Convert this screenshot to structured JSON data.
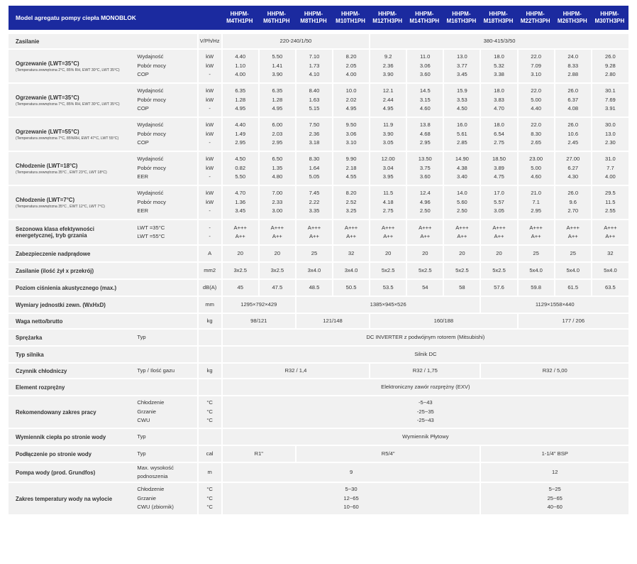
{
  "header": {
    "title": "Model agregatu pompy ciepła MONOBLOK",
    "models": [
      [
        "HHPM-",
        "M4TH1PH"
      ],
      [
        "HHPM-",
        "M6TH1PH"
      ],
      [
        "HHPM-",
        "M8TH1PH"
      ],
      [
        "HHPM-",
        "M10TH1PH"
      ],
      [
        "HHPM-",
        "M12TH3PH"
      ],
      [
        "HHPM-",
        "M14TH3PH"
      ],
      [
        "HHPM-",
        "M16TH3PH"
      ],
      [
        "HHPM-",
        "M18TH3PH"
      ],
      [
        "HHPM-",
        "M22TH3PH"
      ],
      [
        "HHPM-",
        "M26TH3PH"
      ],
      [
        "HHPM-",
        "M30TH3PH"
      ]
    ]
  },
  "rows": [
    {
      "type": "span",
      "label": "Zasilanie",
      "param": "",
      "unit": "V/Ph/Hz",
      "h": 22,
      "groups": [
        {
          "span": 4,
          "lines": [
            "220-240/1/50"
          ]
        },
        {
          "span": 7,
          "lines": [
            "380-415/3/50"
          ]
        }
      ]
    },
    {
      "type": "multi",
      "label": "Ogrzewanie (LWT=35°C)",
      "sub": "(Temperatura zewnętrzna 2°C, 85% RH, EWT 30°C, LWT 35°C)",
      "h": 48,
      "params": [
        "Wydajność",
        "Pobór mocy",
        "COP"
      ],
      "units": [
        "kW",
        "kW",
        "-"
      ],
      "values": [
        [
          "4.40",
          "1.10",
          "4.00"
        ],
        [
          "5.50",
          "1.41",
          "3.90"
        ],
        [
          "7.10",
          "1.73",
          "4.10"
        ],
        [
          "8.20",
          "2.05",
          "4.00"
        ],
        [
          "9.2",
          "2.36",
          "3.90"
        ],
        [
          "11.0",
          "3.06",
          "3.60"
        ],
        [
          "13.0",
          "3.77",
          "3.45"
        ],
        [
          "18.0",
          "5.32",
          "3.38"
        ],
        [
          "22.0",
          "7.09",
          "3.10"
        ],
        [
          "24.0",
          "8.33",
          "2.88"
        ],
        [
          "26.0",
          "9.28",
          "2.80"
        ]
      ]
    },
    {
      "type": "multi",
      "label": "Ogrzewanie (LWT=35°C)",
      "sub": "(Temperatura zewnętrzna 7°C, 85% RH, EWT 30°C, LWT 35°C)",
      "h": 48,
      "params": [
        "Wydajność",
        "Pobór mocy",
        "COP"
      ],
      "units": [
        "kW",
        "kW",
        "-"
      ],
      "values": [
        [
          "6.35",
          "1.28",
          "4.95"
        ],
        [
          "6.35",
          "1.28",
          "4.95"
        ],
        [
          "8.40",
          "1.63",
          "5.15"
        ],
        [
          "10.0",
          "2.02",
          "4.95"
        ],
        [
          "12.1",
          "2.44",
          "4.95"
        ],
        [
          "14.5",
          "3.15",
          "4.60"
        ],
        [
          "15.9",
          "3.53",
          "4.50"
        ],
        [
          "18.0",
          "3.83",
          "4.70"
        ],
        [
          "22.0",
          "5.00",
          "4.40"
        ],
        [
          "26.0",
          "6.37",
          "4.08"
        ],
        [
          "30.1",
          "7.69",
          "3.91"
        ]
      ]
    },
    {
      "type": "multi",
      "label": "Ogrzewanie (LWT=55°C)",
      "sub": "(Temperatura zewnętrzna 7°C, 85%RH, EWT 47°C, LWT 55°C)",
      "h": 48,
      "params": [
        "Wydajność",
        "Pobór mocy",
        "COP"
      ],
      "units": [
        "kW",
        "kW",
        "-"
      ],
      "values": [
        [
          "4.40",
          "1.49",
          "2.95"
        ],
        [
          "6.00",
          "2.03",
          "2.95"
        ],
        [
          "7.50",
          "2.36",
          "3.18"
        ],
        [
          "9.50",
          "3.06",
          "3.10"
        ],
        [
          "11.9",
          "3.90",
          "3.05"
        ],
        [
          "13.8",
          "4.68",
          "2.95"
        ],
        [
          "16.0",
          "5.61",
          "2.85"
        ],
        [
          "18.0",
          "6.54",
          "2.75"
        ],
        [
          "22.0",
          "8.30",
          "2.65"
        ],
        [
          "26.0",
          "10.6",
          "2.45"
        ],
        [
          "30.0",
          "13.0",
          "2.30"
        ]
      ]
    },
    {
      "type": "multi",
      "label": "Chłodzenie (LWT=18°C)",
      "sub": "(Temperatura zewnętrzna 35°C , EWT 23°C, LWT 18°C)",
      "h": 48,
      "params": [
        "Wydajność",
        "Pobór mocy",
        "EER"
      ],
      "units": [
        "kW",
        "kW",
        "-"
      ],
      "values": [
        [
          "4.50",
          "0.82",
          "5.50"
        ],
        [
          "6.50",
          "1.35",
          "4.80"
        ],
        [
          "8.30",
          "1.64",
          "5.05"
        ],
        [
          "9.90",
          "2.18",
          "4.55"
        ],
        [
          "12.00",
          "3.04",
          "3.95"
        ],
        [
          "13.50",
          "3.75",
          "3.60"
        ],
        [
          "14.90",
          "4.38",
          "3.40"
        ],
        [
          "18.50",
          "3.89",
          "4.75"
        ],
        [
          "23.00",
          "5.00",
          "4.60"
        ],
        [
          "27.00",
          "6.27",
          "4.30"
        ],
        [
          "31.0",
          "7.7",
          "4.00"
        ]
      ]
    },
    {
      "type": "multi",
      "label": "Chłodzenie (LWT=7°C)",
      "sub": "(Temperatura zewnętrzna 35°C , EWT 12°C, LWT 7°C)",
      "h": 48,
      "params": [
        "Wydajność",
        "Pobór mocy",
        "EER"
      ],
      "units": [
        "kW",
        "kW",
        "-"
      ],
      "values": [
        [
          "4.70",
          "1.36",
          "3.45"
        ],
        [
          "7.00",
          "2.33",
          "3.00"
        ],
        [
          "7.45",
          "2.22",
          "3.35"
        ],
        [
          "8.20",
          "2.52",
          "3.25"
        ],
        [
          "11.5",
          "4.18",
          "2.75"
        ],
        [
          "12.4",
          "4.96",
          "2.50"
        ],
        [
          "14.0",
          "5.60",
          "2.50"
        ],
        [
          "17.0",
          "5.57",
          "3.05"
        ],
        [
          "21.0",
          "7.1",
          "2.95"
        ],
        [
          "26.0",
          "9.6",
          "2.70"
        ],
        [
          "29.5",
          "11.5",
          "2.55"
        ]
      ]
    },
    {
      "type": "multi",
      "label": "Sezonowa klasa efektywności energetycznej, tryb grzania",
      "sub": "",
      "h": 36,
      "params": [
        "LWT =35°C",
        "LWT =55°C"
      ],
      "units": [
        "-",
        "-"
      ],
      "values": [
        [
          "A+++",
          "A++"
        ],
        [
          "A+++",
          "A++"
        ],
        [
          "A+++",
          "A++"
        ],
        [
          "A+++",
          "A++"
        ],
        [
          "A+++",
          "A++"
        ],
        [
          "A+++",
          "A++"
        ],
        [
          "A+++",
          "A++"
        ],
        [
          "A+++",
          "A++"
        ],
        [
          "A+++",
          "A++"
        ],
        [
          "A+++",
          "A++"
        ],
        [
          "A+++",
          "A++"
        ]
      ]
    },
    {
      "type": "single",
      "label": "Zabezpieczenie nadprądowe",
      "param": "",
      "unit": "A",
      "h": 24,
      "values": [
        "20",
        "20",
        "25",
        "32",
        "20",
        "20",
        "20",
        "20",
        "25",
        "25",
        "32"
      ]
    },
    {
      "type": "single",
      "label": "Zasilanie (ilość żył x przekrój)",
      "param": "",
      "unit": "mm2",
      "h": 24,
      "values": [
        "3x2.5",
        "3x2.5",
        "3x4.0",
        "3x4.0",
        "5x2.5",
        "5x2.5",
        "5x2.5",
        "5x2.5",
        "5x4.0",
        "5x4.0",
        "5x4.0"
      ]
    },
    {
      "type": "single",
      "label": "Poziom ciśnienia akustycznego (max.)",
      "param": "",
      "unit": "dB(A)",
      "h": 24,
      "values": [
        "45",
        "47.5",
        "48.5",
        "50.5",
        "53.5",
        "54",
        "58",
        "57.6",
        "59.8",
        "61.5",
        "63.5"
      ]
    },
    {
      "type": "span",
      "label": "Wymiary jednostki zewn. (WxHxD)",
      "param": "",
      "unit": "mm",
      "h": 24,
      "groups": [
        {
          "span": 2,
          "lines": [
            "1295×792×429"
          ]
        },
        {
          "span": 5,
          "lines": [
            "1385×945×526"
          ]
        },
        {
          "span": 4,
          "lines": [
            "1129×1558×440"
          ]
        }
      ]
    },
    {
      "type": "span",
      "label": "Waga netto/brutto",
      "param": "",
      "unit": "kg",
      "h": 22,
      "groups": [
        {
          "span": 2,
          "lines": [
            "98/121"
          ]
        },
        {
          "span": 2,
          "lines": [
            "121/148"
          ]
        },
        {
          "span": 4,
          "lines": [
            "160/188"
          ]
        },
        {
          "span": 3,
          "lines": [
            "177 / 206"
          ]
        }
      ]
    },
    {
      "type": "span",
      "label": "Sprężarka",
      "param": "Typ",
      "unit": "",
      "h": 24,
      "groups": [
        {
          "span": 11,
          "lines": [
            "DC INVERTER z podwójnym rotorem (Mitsubishi)"
          ]
        }
      ]
    },
    {
      "type": "span",
      "label": "Typ silnika",
      "param": "",
      "unit": "",
      "h": 24,
      "groups": [
        {
          "span": 11,
          "lines": [
            "Silnik DC"
          ]
        }
      ]
    },
    {
      "type": "span",
      "label": "Czynnik chłodniczy",
      "param": "Typ / Ilość gazu",
      "unit": "kg",
      "h": 22,
      "groups": [
        {
          "span": 4,
          "lines": [
            "R32 / 1,4"
          ]
        },
        {
          "span": 3,
          "lines": [
            "R32 / 1,75"
          ]
        },
        {
          "span": 4,
          "lines": [
            "R32 / 5,00"
          ]
        }
      ]
    },
    {
      "type": "span",
      "label": "Element rozprężny",
      "param": "",
      "unit": "",
      "h": 24,
      "groups": [
        {
          "span": 11,
          "lines": [
            "Elektroniczny zawór rozprężny (EXV)"
          ]
        }
      ]
    },
    {
      "type": "multispan",
      "label": "Rekomendowany zakres pracy",
      "h": 46,
      "params": [
        "Chłodzenie",
        "Grzanie",
        "CWU"
      ],
      "units": [
        "°C",
        "°C",
        "°C"
      ],
      "groups": [
        {
          "span": 11,
          "lines": [
            "-5~43",
            "-25~35",
            "-25~43"
          ]
        }
      ]
    },
    {
      "type": "span",
      "label": "Wymiennik ciepła po stronie wody",
      "param": "Typ",
      "unit": "",
      "h": 24,
      "groups": [
        {
          "span": 11,
          "lines": [
            "Wymiennik Płytowy"
          ]
        }
      ]
    },
    {
      "type": "span",
      "label": "Podłączenie po stronie wody",
      "param": "Typ",
      "unit": "cal",
      "h": 24,
      "groups": [
        {
          "span": 2,
          "lines": [
            "R1\""
          ]
        },
        {
          "span": 5,
          "lines": [
            "R5/4\""
          ]
        },
        {
          "span": 4,
          "lines": [
            "1-1/4\" BSP"
          ]
        }
      ]
    },
    {
      "type": "span",
      "label": "Pompa wody (prod. Grundfos)",
      "param": "Max. wysokość podnoszenia",
      "unit": "m",
      "h": 28,
      "groups": [
        {
          "span": 7,
          "lines": [
            "9"
          ]
        },
        {
          "span": 4,
          "lines": [
            "12"
          ]
        }
      ]
    },
    {
      "type": "multispan",
      "label": "Zakres temperatury wody na wylocie",
      "h": 46,
      "params": [
        "Chłodzenie",
        "Grzanie",
        "CWU (zbiornik)"
      ],
      "units": [
        "°C",
        "°C",
        "°C"
      ],
      "groups": [
        {
          "span": 7,
          "lines": [
            "5~30",
            "12~65",
            "10~60"
          ]
        },
        {
          "span": 4,
          "lines": [
            "5~25",
            "25~65",
            "40~60"
          ]
        }
      ]
    }
  ]
}
